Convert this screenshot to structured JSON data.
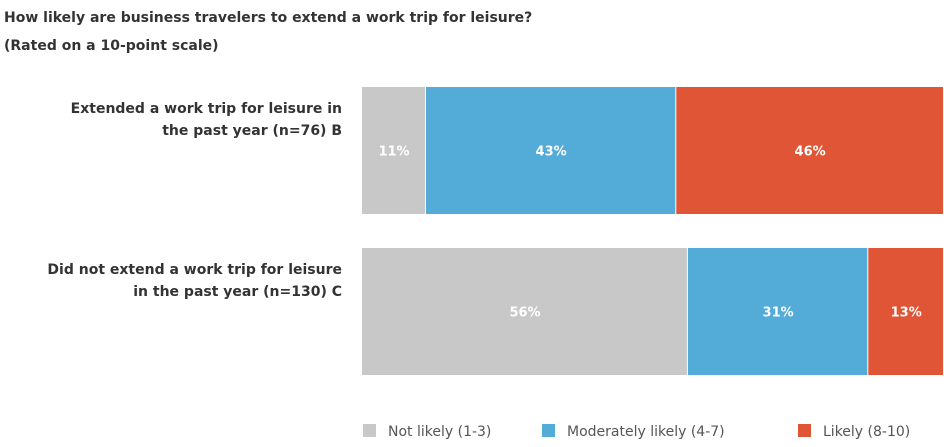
{
  "chart_data": {
    "type": "bar",
    "orientation": "horizontal",
    "stacked": true,
    "title": "How likely are business travelers to extend a work trip for leisure?",
    "subtitle": "(Rated on a 10-point scale)",
    "categories": [
      "Extended a work trip for leisure in the past year (n=76) B",
      "Did not extend a work trip for leisure in the past year (n=130) C"
    ],
    "category_lines": [
      [
        "Extended a work trip for leisure in",
        "the past year (n=76) B"
      ],
      [
        "Did not extend a work trip for leisure",
        "in the past year (n=130) C"
      ]
    ],
    "series": [
      {
        "name": "Not likely (1-3)",
        "values": [
          11,
          56
        ],
        "labels": [
          "11%",
          "56%"
        ],
        "color": "#c8c8c8"
      },
      {
        "name": "Moderately likely (4-7)",
        "values": [
          43,
          31
        ],
        "labels": [
          "43%",
          "31%"
        ],
        "color": "#53acd7"
      },
      {
        "name": "Likely (8-10)",
        "values": [
          46,
          13
        ],
        "labels": [
          "46%",
          "13%"
        ],
        "color": "#df5535"
      }
    ],
    "xlim": [
      0,
      100
    ],
    "legend_position": "bottom",
    "grid": false
  }
}
